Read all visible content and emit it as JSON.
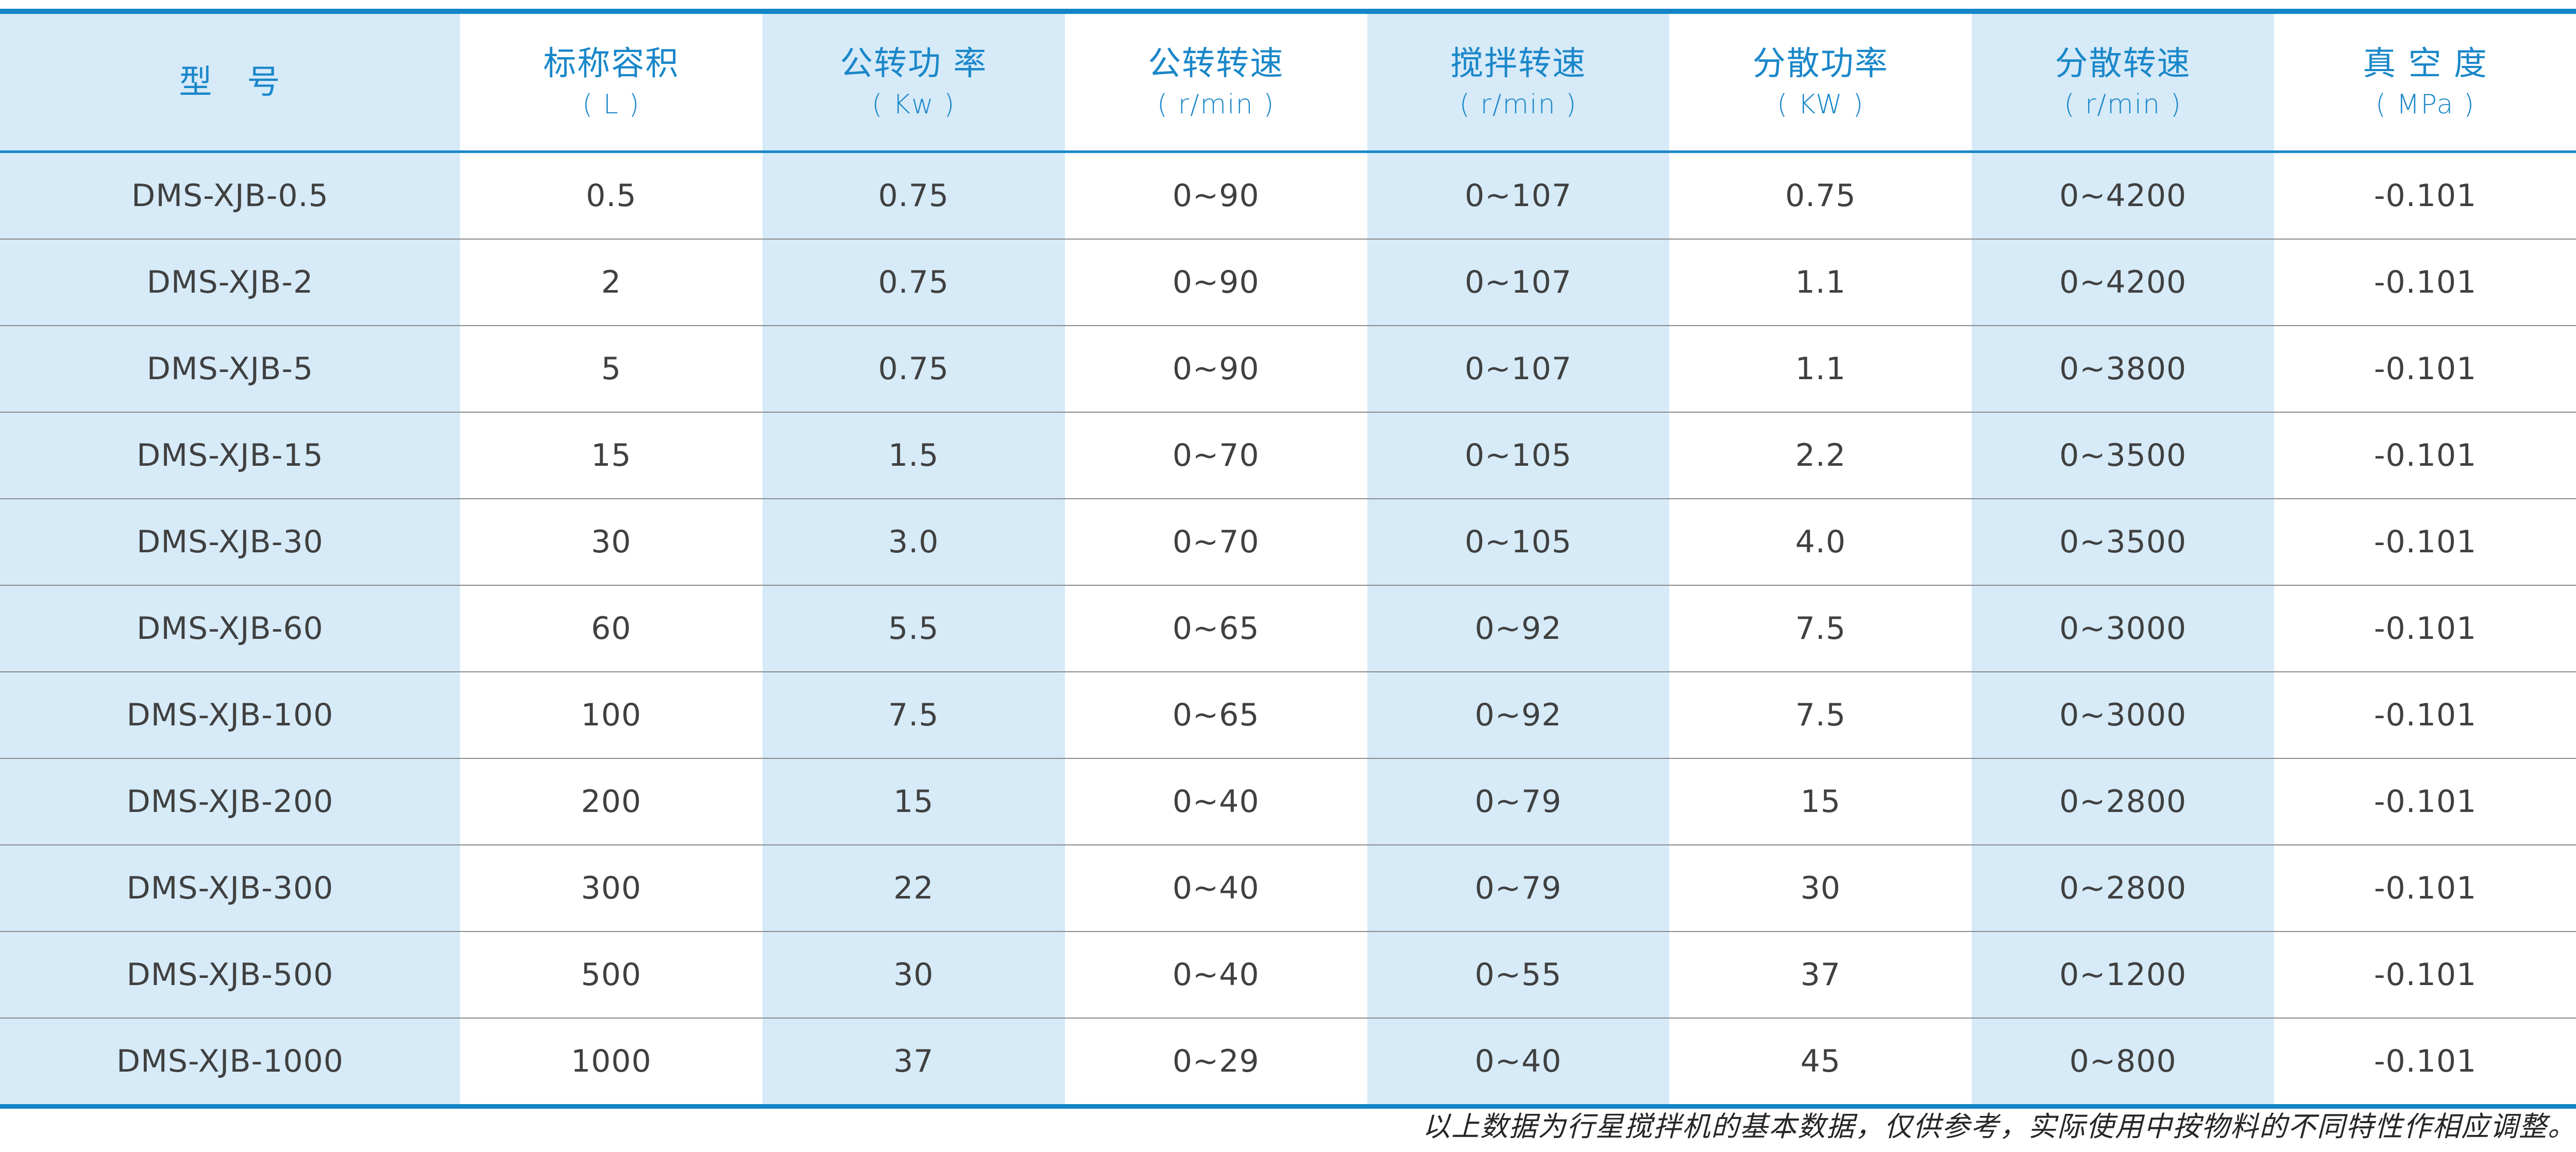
{
  "colors": {
    "accent_blue": "#1486c8",
    "stripe_light_blue": "#d6eaf8",
    "header_text_blue": "#1a87c9",
    "body_text": "#404040",
    "row_separator": "#8a8a8a"
  },
  "table": {
    "columns": [
      {
        "label": "型　号",
        "unit": ""
      },
      {
        "label": "标称容积",
        "unit": "( L )"
      },
      {
        "label": "公转功 率",
        "unit": "( Kw )"
      },
      {
        "label": "公转转速",
        "unit": "( r/min )"
      },
      {
        "label": "搅拌转速",
        "unit": "( r/min )"
      },
      {
        "label": "分散功率",
        "unit": "( KW )"
      },
      {
        "label": "分散转速",
        "unit": "( r/min )"
      },
      {
        "label": "真 空 度",
        "unit": "( MPa )"
      }
    ],
    "rows": [
      {
        "model": "DMS-XJB-0.5",
        "values": [
          "0.5",
          "0.75",
          "0~90",
          "0~107",
          "0.75",
          "0~4200",
          "-0.101"
        ]
      },
      {
        "model": "DMS-XJB-2",
        "values": [
          "2",
          "0.75",
          "0~90",
          "0~107",
          "1.1",
          "0~4200",
          "-0.101"
        ]
      },
      {
        "model": "DMS-XJB-5",
        "values": [
          "5",
          "0.75",
          "0~90",
          "0~107",
          "1.1",
          "0~3800",
          "-0.101"
        ]
      },
      {
        "model": "DMS-XJB-15",
        "values": [
          "15",
          "1.5",
          "0~70",
          "0~105",
          "2.2",
          "0~3500",
          "-0.101"
        ]
      },
      {
        "model": "DMS-XJB-30",
        "values": [
          "30",
          "3.0",
          "0~70",
          "0~105",
          "4.0",
          "0~3500",
          "-0.101"
        ]
      },
      {
        "model": "DMS-XJB-60",
        "values": [
          "60",
          "5.5",
          "0~65",
          "0~92",
          "7.5",
          "0~3000",
          "-0.101"
        ]
      },
      {
        "model": "DMS-XJB-100",
        "values": [
          "100",
          "7.5",
          "0~65",
          "0~92",
          "7.5",
          "0~3000",
          "-0.101"
        ]
      },
      {
        "model": "DMS-XJB-200",
        "values": [
          "200",
          "15",
          "0~40",
          "0~79",
          "15",
          "0~2800",
          "-0.101"
        ]
      },
      {
        "model": "DMS-XJB-300",
        "values": [
          "300",
          "22",
          "0~40",
          "0~79",
          "30",
          "0~2800",
          "-0.101"
        ]
      },
      {
        "model": "DMS-XJB-500",
        "values": [
          "500",
          "30",
          "0~40",
          "0~55",
          "37",
          "0~1200",
          "-0.101"
        ]
      },
      {
        "model": "DMS-XJB-1000",
        "values": [
          "1000",
          "37",
          "0~29",
          "0~40",
          "45",
          "0~800",
          "-0.101"
        ]
      }
    ]
  },
  "footnote": "以上数据为行星搅拌机的基本数据，仅供参考，实际使用中按物料的不同特性作相应调整。"
}
